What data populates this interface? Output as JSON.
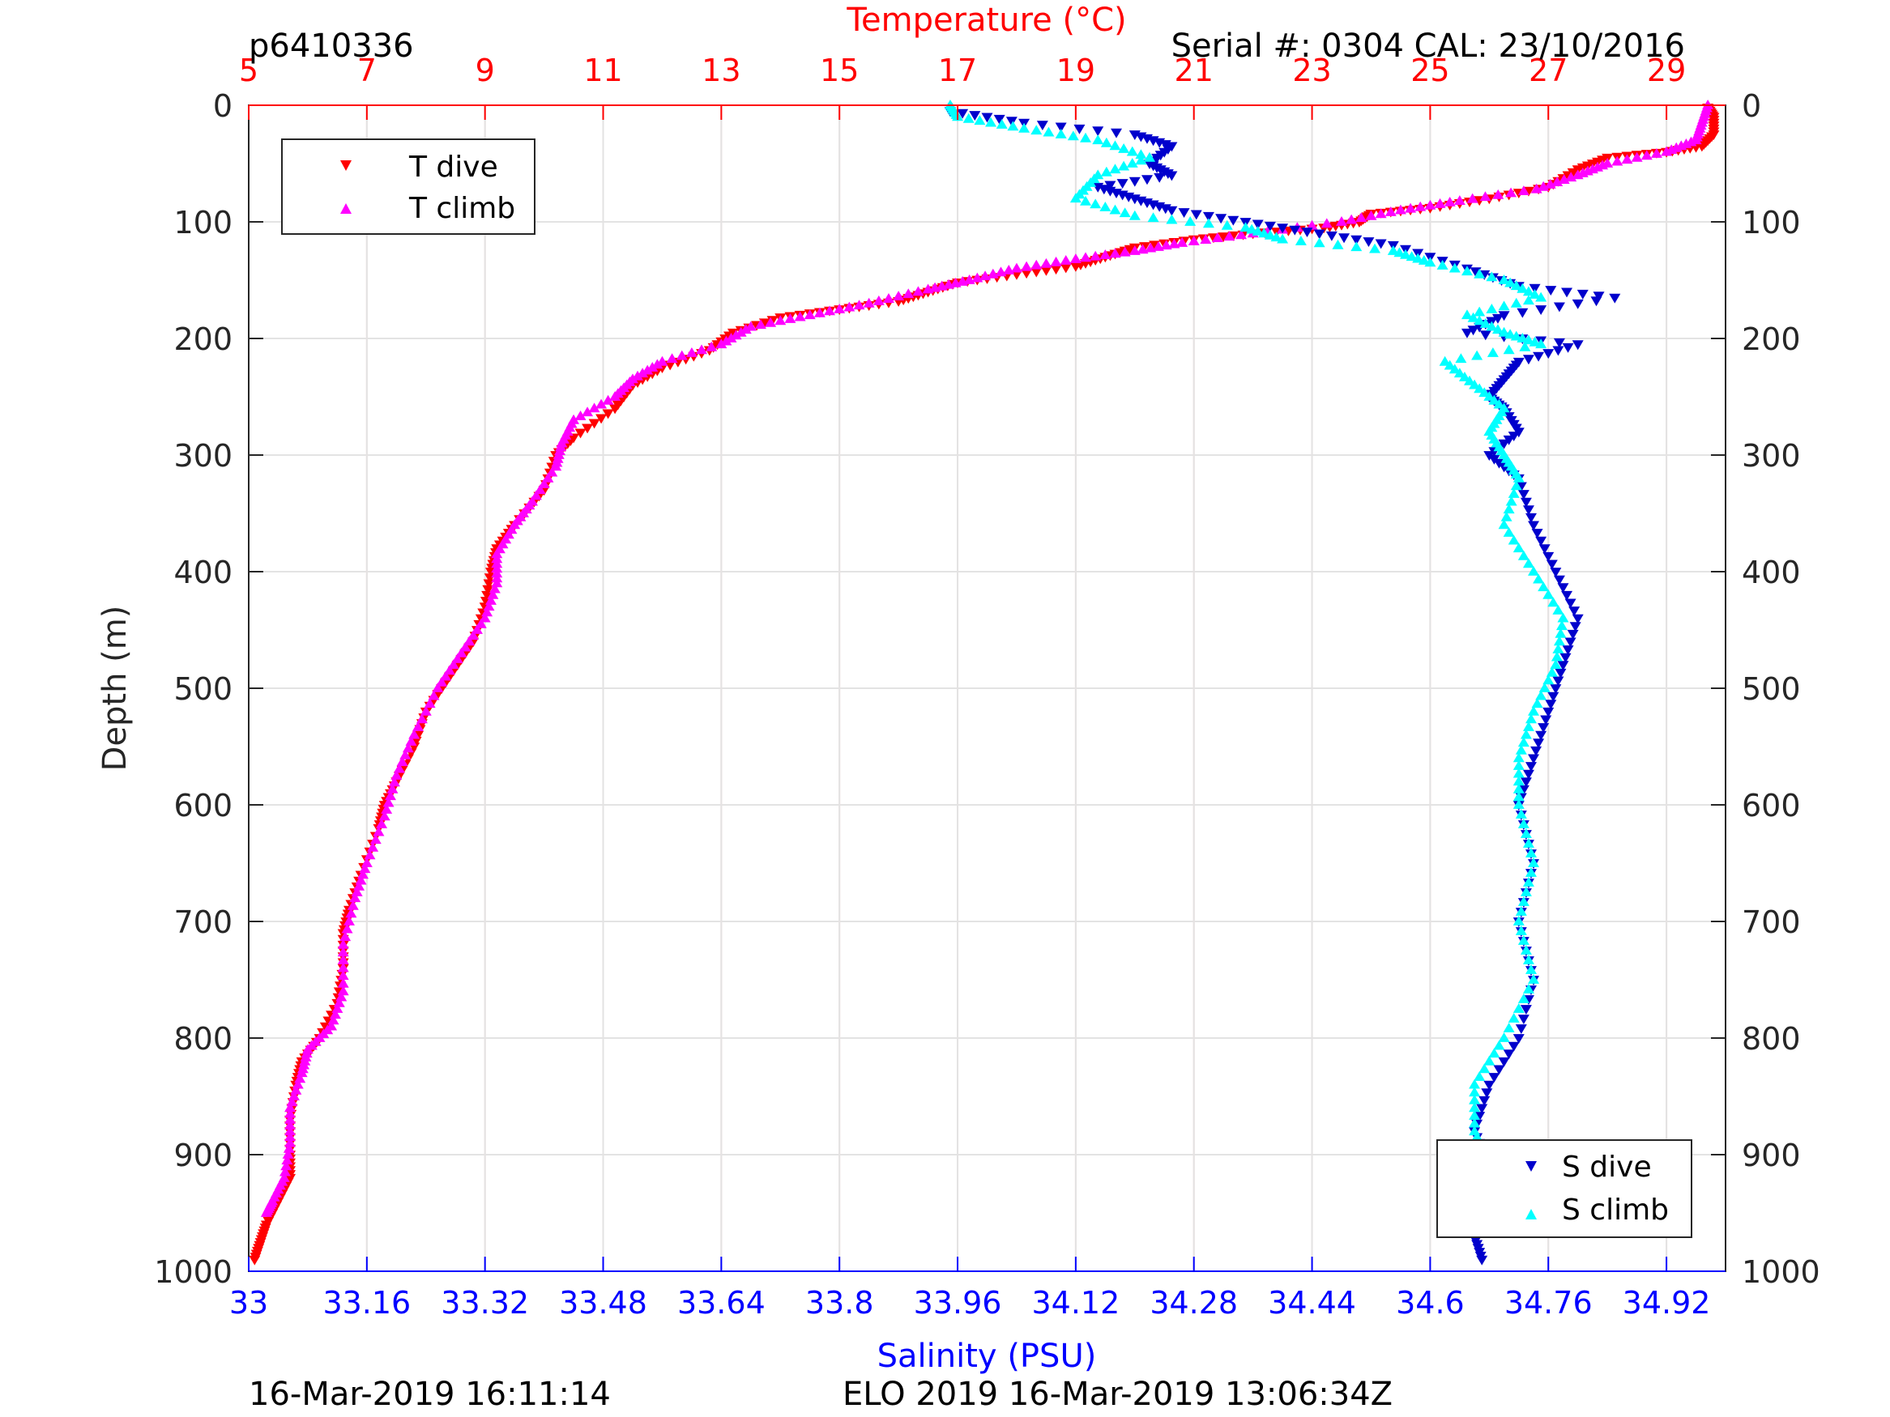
{
  "header": {
    "profile_id": "p6410336",
    "serial_cal": "Serial #: 0304  CAL: 23/10/2016"
  },
  "footer": {
    "plot_time": "16-Mar-2019 16:11:14",
    "mission": "ELO 2019 16-Mar-2019 13:06:34Z"
  },
  "chart_data": {
    "type": "scatter",
    "title": "",
    "ylabel": "Depth (m)",
    "ylim": [
      0,
      1000
    ],
    "y_reversed": true,
    "y_ticks": [
      "0",
      "100",
      "200",
      "300",
      "400",
      "500",
      "600",
      "700",
      "800",
      "900",
      "1000"
    ],
    "grid": true,
    "top_axis": {
      "label": "Temperature (°C)",
      "range": [
        5,
        30
      ],
      "ticks": [
        "5",
        "7",
        "9",
        "11",
        "13",
        "15",
        "17",
        "19",
        "21",
        "23",
        "25",
        "27",
        "29"
      ],
      "color": "#ff0000"
    },
    "bottom_axis": {
      "label": "Salinity (PSU)",
      "range": [
        33,
        35
      ],
      "ticks": [
        "33",
        "33.16",
        "33.32",
        "33.48",
        "33.64",
        "33.8",
        "33.96",
        "34.12",
        "34.28",
        "34.44",
        "34.6",
        "34.76",
        "34.92"
      ],
      "color": "#0000ff"
    },
    "legends": [
      {
        "position": "top-left",
        "entries": [
          {
            "label": "T dive",
            "marker": "triangle-down",
            "color": "#ff0000"
          },
          {
            "label": "T climb",
            "marker": "triangle-up",
            "color": "#ff00ff"
          }
        ]
      },
      {
        "position": "bottom-right",
        "entries": [
          {
            "label": "S dive",
            "marker": "triangle-down",
            "color": "#0000cc"
          },
          {
            "label": "S climb",
            "marker": "triangle-up",
            "color": "#00ffff"
          }
        ]
      }
    ],
    "series": [
      {
        "name": "T dive",
        "axis": "temperature",
        "marker": "triangle-down",
        "color": "#ff0000",
        "points": [
          [
            29.7,
            2
          ],
          [
            29.8,
            10
          ],
          [
            29.8,
            25
          ],
          [
            29.6,
            35
          ],
          [
            29.0,
            40
          ],
          [
            28.0,
            45
          ],
          [
            27.5,
            55
          ],
          [
            27.0,
            70
          ],
          [
            26.0,
            80
          ],
          [
            25.0,
            88
          ],
          [
            24.0,
            93
          ],
          [
            23.8,
            100
          ],
          [
            23.2,
            105
          ],
          [
            22.0,
            110
          ],
          [
            21.0,
            115
          ],
          [
            20.0,
            122
          ],
          [
            19.5,
            130
          ],
          [
            19.0,
            138
          ],
          [
            18.0,
            145
          ],
          [
            17.0,
            152
          ],
          [
            16.5,
            160
          ],
          [
            16.0,
            168
          ],
          [
            15.0,
            175
          ],
          [
            14.0,
            182
          ],
          [
            13.2,
            195
          ],
          [
            12.8,
            210
          ],
          [
            12.0,
            225
          ],
          [
            11.5,
            240
          ],
          [
            11.2,
            260
          ],
          [
            10.5,
            285
          ],
          [
            10.2,
            300
          ],
          [
            10.0,
            330
          ],
          [
            9.5,
            360
          ],
          [
            9.2,
            380
          ],
          [
            9.1,
            400
          ],
          [
            9.0,
            430
          ],
          [
            8.8,
            460
          ],
          [
            8.4,
            490
          ],
          [
            8.0,
            520
          ],
          [
            7.8,
            550
          ],
          [
            7.5,
            580
          ],
          [
            7.3,
            600
          ],
          [
            7.2,
            620
          ],
          [
            6.9,
            660
          ],
          [
            6.7,
            690
          ],
          [
            6.6,
            710
          ],
          [
            6.6,
            740
          ],
          [
            6.5,
            770
          ],
          [
            6.2,
            800
          ],
          [
            5.9,
            820
          ],
          [
            5.8,
            840
          ],
          [
            5.7,
            870
          ],
          [
            5.7,
            900
          ],
          [
            5.7,
            920
          ],
          [
            5.5,
            940
          ],
          [
            5.3,
            960
          ],
          [
            5.2,
            975
          ],
          [
            5.1,
            990
          ]
        ]
      },
      {
        "name": "T climb",
        "axis": "temperature",
        "marker": "triangle-up",
        "color": "#ff00ff",
        "points": [
          [
            29.7,
            0
          ],
          [
            29.6,
            15
          ],
          [
            29.5,
            30
          ],
          [
            29.0,
            40
          ],
          [
            28.0,
            50
          ],
          [
            27.5,
            60
          ],
          [
            26.8,
            72
          ],
          [
            25.5,
            82
          ],
          [
            24.5,
            90
          ],
          [
            23.5,
            100
          ],
          [
            22.0,
            110
          ],
          [
            20.8,
            118
          ],
          [
            20.0,
            125
          ],
          [
            19.0,
            132
          ],
          [
            18.0,
            140
          ],
          [
            17.2,
            150
          ],
          [
            16.5,
            158
          ],
          [
            15.5,
            170
          ],
          [
            14.5,
            180
          ],
          [
            13.5,
            190
          ],
          [
            13.0,
            205
          ],
          [
            12.0,
            220
          ],
          [
            11.5,
            235
          ],
          [
            11.2,
            250
          ],
          [
            10.5,
            270
          ],
          [
            10.3,
            290
          ],
          [
            10.2,
            310
          ],
          [
            9.8,
            340
          ],
          [
            9.5,
            360
          ],
          [
            9.2,
            385
          ],
          [
            9.2,
            410
          ],
          [
            9.0,
            440
          ],
          [
            8.6,
            470
          ],
          [
            8.2,
            500
          ],
          [
            7.8,
            540
          ],
          [
            7.5,
            575
          ],
          [
            7.3,
            610
          ],
          [
            7.0,
            650
          ],
          [
            6.8,
            680
          ],
          [
            6.6,
            720
          ],
          [
            6.6,
            760
          ],
          [
            6.4,
            790
          ],
          [
            6.0,
            810
          ],
          [
            5.9,
            830
          ],
          [
            5.7,
            860
          ],
          [
            5.7,
            890
          ],
          [
            5.6,
            920
          ],
          [
            5.4,
            940
          ],
          [
            5.3,
            950
          ]
        ]
      },
      {
        "name": "S dive",
        "axis": "salinity",
        "marker": "triangle-down",
        "color": "#0000cc",
        "points": [
          [
            33.95,
            5
          ],
          [
            34.05,
            15
          ],
          [
            34.2,
            25
          ],
          [
            34.25,
            35
          ],
          [
            34.22,
            50
          ],
          [
            34.25,
            60
          ],
          [
            34.15,
            70
          ],
          [
            34.2,
            80
          ],
          [
            34.25,
            90
          ],
          [
            34.35,
            100
          ],
          [
            34.45,
            110
          ],
          [
            34.55,
            120
          ],
          [
            34.65,
            140
          ],
          [
            34.72,
            155
          ],
          [
            34.85,
            165
          ],
          [
            34.7,
            180
          ],
          [
            34.65,
            195
          ],
          [
            34.8,
            205
          ],
          [
            34.72,
            220
          ],
          [
            34.7,
            235
          ],
          [
            34.68,
            250
          ],
          [
            34.7,
            260
          ],
          [
            34.72,
            280
          ],
          [
            34.68,
            300
          ],
          [
            34.72,
            320
          ],
          [
            34.74,
            360
          ],
          [
            34.77,
            400
          ],
          [
            34.8,
            440
          ],
          [
            34.78,
            480
          ],
          [
            34.76,
            520
          ],
          [
            34.74,
            560
          ],
          [
            34.72,
            600
          ],
          [
            34.74,
            650
          ],
          [
            34.72,
            700
          ],
          [
            34.74,
            750
          ],
          [
            34.72,
            800
          ],
          [
            34.68,
            840
          ],
          [
            34.66,
            880
          ],
          [
            34.68,
            910
          ],
          [
            34.66,
            940
          ],
          [
            34.66,
            970
          ],
          [
            34.67,
            990
          ]
        ]
      },
      {
        "name": "S climb",
        "axis": "salinity",
        "marker": "triangle-up",
        "color": "#00ffff",
        "points": [
          [
            33.95,
            0
          ],
          [
            33.96,
            10
          ],
          [
            34.05,
            20
          ],
          [
            34.15,
            30
          ],
          [
            34.22,
            45
          ],
          [
            34.15,
            60
          ],
          [
            34.12,
            80
          ],
          [
            34.2,
            95
          ],
          [
            34.35,
            105
          ],
          [
            34.4,
            115
          ],
          [
            34.55,
            125
          ],
          [
            34.6,
            135
          ],
          [
            34.7,
            150
          ],
          [
            34.75,
            165
          ],
          [
            34.65,
            180
          ],
          [
            34.7,
            195
          ],
          [
            34.75,
            205
          ],
          [
            34.62,
            220
          ],
          [
            34.66,
            240
          ],
          [
            34.7,
            260
          ],
          [
            34.68,
            280
          ],
          [
            34.7,
            300
          ],
          [
            34.72,
            320
          ],
          [
            34.7,
            360
          ],
          [
            34.74,
            400
          ],
          [
            34.78,
            440
          ],
          [
            34.77,
            480
          ],
          [
            34.74,
            520
          ],
          [
            34.72,
            560
          ],
          [
            34.72,
            600
          ],
          [
            34.74,
            650
          ],
          [
            34.72,
            700
          ],
          [
            34.74,
            750
          ],
          [
            34.7,
            800
          ],
          [
            34.66,
            840
          ],
          [
            34.66,
            880
          ],
          [
            34.68,
            910
          ],
          [
            34.66,
            940
          ],
          [
            34.64,
            960
          ]
        ]
      }
    ]
  }
}
